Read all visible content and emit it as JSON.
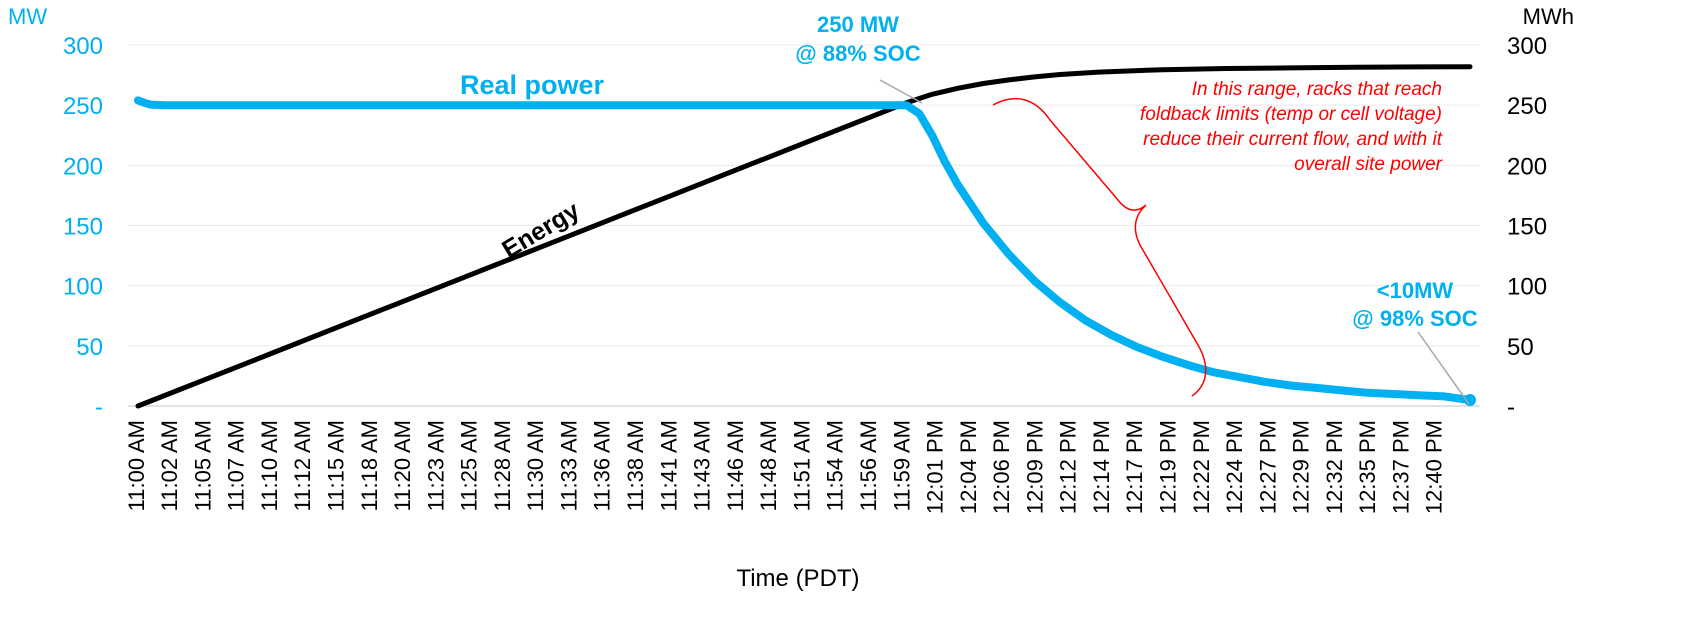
{
  "chart_data": {
    "type": "line",
    "title": "",
    "xlabel": "Time (PDT)",
    "y_left_unit": "MW",
    "y_right_unit": "MWh",
    "ylim_left": [
      0,
      300
    ],
    "ylim_right": [
      0,
      300
    ],
    "y_ticks_left": [
      "-",
      "50",
      "100",
      "150",
      "200",
      "250",
      "300"
    ],
    "y_ticks_right": [
      "-",
      "50",
      "100",
      "150",
      "200",
      "250",
      "300"
    ],
    "grid": true,
    "x_tick_labels": [
      "11:00 AM",
      "11:02 AM",
      "11:05 AM",
      "11:07 AM",
      "11:10 AM",
      "11:12 AM",
      "11:15 AM",
      "11:18 AM",
      "11:20 AM",
      "11:23 AM",
      "11:25 AM",
      "11:28 AM",
      "11:30 AM",
      "11:33 AM",
      "11:36 AM",
      "11:38 AM",
      "11:41 AM",
      "11:43 AM",
      "11:46 AM",
      "11:48 AM",
      "11:51 AM",
      "11:54 AM",
      "11:56 AM",
      "11:59 AM",
      "12:01 PM",
      "12:04 PM",
      "12:06 PM",
      "12:09 PM",
      "12:12 PM",
      "12:14 PM",
      "12:17 PM",
      "12:19 PM",
      "12:22 PM",
      "12:24 PM",
      "12:27 PM",
      "12:29 PM",
      "12:32 PM",
      "12:35 PM",
      "12:37 PM",
      "12:40 PM"
    ],
    "series": [
      {
        "name": "Real power",
        "axis": "left",
        "color": "#00b0f0",
        "x_minutes": [
          0,
          0.5,
          1,
          2,
          5,
          10,
          20,
          30,
          40,
          50,
          60,
          61,
          62,
          63,
          64,
          66,
          68,
          70,
          72,
          74,
          76,
          78,
          80,
          82,
          84,
          86,
          88,
          90,
          92,
          94,
          96,
          98,
          100,
          102,
          104
        ],
        "values": [
          254,
          252,
          250.5,
          250,
          250,
          250,
          250,
          250,
          250,
          250,
          250,
          243,
          225,
          203,
          184,
          152,
          126,
          104,
          86,
          71,
          59,
          49,
          41,
          34,
          28,
          24,
          20,
          17,
          15,
          13,
          11,
          10,
          9,
          8,
          5
        ]
      },
      {
        "name": "Energy",
        "axis": "right",
        "color": "#000000",
        "x_minutes": [
          0,
          10,
          20,
          30,
          40,
          50,
          60,
          62,
          64,
          66,
          68,
          70,
          72,
          75,
          80,
          85,
          90,
          95,
          100,
          104
        ],
        "values": [
          0,
          42,
          84,
          126,
          168,
          210,
          252,
          259,
          264,
          268,
          271,
          273.5,
          275.5,
          277.5,
          279.5,
          280.5,
          281,
          281.5,
          281.8,
          282
        ]
      }
    ],
    "annotations": {
      "peak_line1": "250 MW",
      "peak_line2": "@ 88% SOC",
      "end_line1": "<10MW",
      "end_line2": "@ 98% SOC",
      "note_lines": [
        "In this range, racks that reach",
        "foldback limits (temp or cell voltage)",
        "reduce their current flow, and with it",
        "overall site power"
      ]
    }
  }
}
